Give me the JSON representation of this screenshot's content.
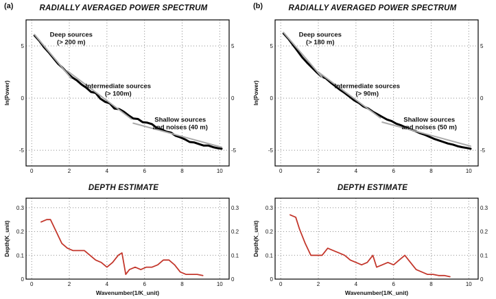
{
  "panels": {
    "a": {
      "tag": "(a)"
    },
    "b": {
      "tag": "(b)"
    }
  },
  "chart_data": [
    {
      "id": "a-power-spectrum",
      "type": "line",
      "title": "RADIALLY AVERAGED POWER SPECTRUM",
      "xlabel": "",
      "ylabel": "ln(Power)",
      "xlim": [
        -0.3,
        10.5
      ],
      "ylim": [
        -6.5,
        7.5
      ],
      "xticks": [
        0,
        2,
        4,
        6,
        8,
        10
      ],
      "yticks": [
        -5,
        0,
        5
      ],
      "grid": true,
      "series": [
        {
          "name": "power-spectrum",
          "color": "#000000",
          "width": 3,
          "x": [
            0.15,
            0.4,
            0.65,
            0.9,
            1.15,
            1.4,
            1.65,
            1.9,
            2.15,
            2.4,
            2.65,
            2.9,
            3.15,
            3.4,
            3.65,
            3.9,
            4.15,
            4.4,
            4.65,
            4.9,
            5.15,
            5.4,
            5.65,
            5.9,
            6.15,
            6.4,
            6.65,
            6.9,
            7.15,
            7.4,
            7.65,
            7.9,
            8.15,
            8.4,
            8.65,
            8.9,
            9.15,
            9.4,
            9.65,
            9.9,
            10.1
          ],
          "y": [
            6.0,
            5.5,
            4.9,
            4.4,
            3.85,
            3.3,
            2.9,
            2.4,
            2.0,
            1.7,
            1.3,
            1.0,
            0.6,
            0.5,
            -0.05,
            -0.35,
            -0.5,
            -1.0,
            -1.05,
            -1.3,
            -1.65,
            -1.95,
            -2.0,
            -2.3,
            -2.35,
            -2.5,
            -2.85,
            -3.0,
            -3.2,
            -3.3,
            -3.6,
            -3.75,
            -3.95,
            -4.2,
            -4.25,
            -4.4,
            -4.55,
            -4.55,
            -4.7,
            -4.8,
            -4.85
          ]
        },
        {
          "name": "deep-trend",
          "color": "#aaaaaa",
          "width": 2,
          "x": [
            0.15,
            2.1
          ],
          "y": [
            6.1,
            1.9
          ]
        },
        {
          "name": "intermediate-trend",
          "color": "#aaaaaa",
          "width": 2,
          "x": [
            1.9,
            5.3
          ],
          "y": [
            2.6,
            -2.0
          ]
        },
        {
          "name": "shallow-trend",
          "color": "#aaaaaa",
          "width": 2,
          "x": [
            5.4,
            10.1
          ],
          "y": [
            -2.4,
            -4.7
          ]
        }
      ],
      "annotations": [
        {
          "x": 2.1,
          "y": 5.9,
          "lines": [
            "Deep sources",
            "(> 200 m)"
          ]
        },
        {
          "x": 4.6,
          "y": 0.95,
          "lines": [
            "Intermediate sources",
            "(> 100m)"
          ]
        },
        {
          "x": 7.9,
          "y": -2.25,
          "lines": [
            "Shallow sources",
            "and noises (40 m)"
          ]
        }
      ]
    },
    {
      "id": "a-depth-estimate",
      "type": "line",
      "title": "DEPTH ESTIMATE",
      "xlabel": "Wavenumber(1/K_unit)",
      "ylabel": "Depth(K_unit)",
      "xlim": [
        -0.3,
        10.5
      ],
      "ylim": [
        0,
        0.34
      ],
      "xticks": [
        0,
        2,
        4,
        6,
        8,
        10
      ],
      "yticks": [
        0,
        0.1,
        0.2,
        0.3
      ],
      "grid": true,
      "series": [
        {
          "name": "depth-estimate",
          "color": "#c3362b",
          "width": 1.8,
          "x": [
            0.5,
            0.8,
            1.0,
            1.3,
            1.6,
            1.9,
            2.2,
            2.5,
            2.8,
            3.1,
            3.4,
            3.7,
            4.0,
            4.3,
            4.6,
            4.8,
            5.0,
            5.2,
            5.5,
            5.8,
            6.1,
            6.4,
            6.7,
            7.0,
            7.3,
            7.6,
            7.9,
            8.2,
            8.5,
            8.8,
            9.1
          ],
          "y": [
            0.24,
            0.25,
            0.25,
            0.2,
            0.15,
            0.13,
            0.12,
            0.12,
            0.12,
            0.1,
            0.08,
            0.07,
            0.05,
            0.07,
            0.1,
            0.11,
            0.02,
            0.04,
            0.05,
            0.04,
            0.05,
            0.05,
            0.06,
            0.08,
            0.08,
            0.06,
            0.03,
            0.02,
            0.02,
            0.02,
            0.015
          ]
        }
      ],
      "annotations": []
    },
    {
      "id": "b-power-spectrum",
      "type": "line",
      "title": "RADIALLY AVERAGED POWER SPECTRUM",
      "xlabel": "",
      "ylabel": "ln(Power)",
      "xlim": [
        -0.3,
        10.5
      ],
      "ylim": [
        -6.5,
        7.5
      ],
      "xticks": [
        0,
        2,
        4,
        6,
        8,
        10
      ],
      "yticks": [
        -5,
        0,
        5
      ],
      "grid": true,
      "series": [
        {
          "name": "power-spectrum",
          "color": "#000000",
          "width": 3,
          "x": [
            0.15,
            0.4,
            0.65,
            0.9,
            1.15,
            1.4,
            1.65,
            1.9,
            2.15,
            2.4,
            2.65,
            2.9,
            3.15,
            3.4,
            3.65,
            3.9,
            4.15,
            4.4,
            4.65,
            4.9,
            5.15,
            5.4,
            5.65,
            5.9,
            6.15,
            6.4,
            6.65,
            6.9,
            7.15,
            7.4,
            7.65,
            7.9,
            8.15,
            8.4,
            8.65,
            8.9,
            9.15,
            9.4,
            9.65,
            9.9,
            10.1
          ],
          "y": [
            6.2,
            5.7,
            5.1,
            4.5,
            3.9,
            3.4,
            2.95,
            2.5,
            2.1,
            1.9,
            1.5,
            1.15,
            0.8,
            0.5,
            0.15,
            -0.2,
            -0.45,
            -0.8,
            -1.0,
            -1.3,
            -1.55,
            -1.8,
            -2.05,
            -2.2,
            -2.45,
            -2.6,
            -2.8,
            -3.0,
            -3.15,
            -3.35,
            -3.5,
            -3.7,
            -3.9,
            -4.05,
            -4.2,
            -4.35,
            -4.45,
            -4.6,
            -4.7,
            -4.78,
            -4.85
          ]
        },
        {
          "name": "deep-trend",
          "color": "#aaaaaa",
          "width": 2,
          "x": [
            0.15,
            2.2
          ],
          "y": [
            6.3,
            2.0
          ]
        },
        {
          "name": "intermediate-trend",
          "color": "#aaaaaa",
          "width": 2,
          "x": [
            2.0,
            5.3
          ],
          "y": [
            2.5,
            -1.9
          ]
        },
        {
          "name": "shallow-trend",
          "color": "#aaaaaa",
          "width": 2,
          "x": [
            5.4,
            10.1
          ],
          "y": [
            -2.3,
            -4.6
          ]
        }
      ],
      "annotations": [
        {
          "x": 2.1,
          "y": 5.9,
          "lines": [
            "Deep sources",
            "(> 180 m)"
          ]
        },
        {
          "x": 4.6,
          "y": 0.95,
          "lines": [
            "Intermediate sources",
            "(> 90m)"
          ]
        },
        {
          "x": 7.9,
          "y": -2.25,
          "lines": [
            "Shallow sources",
            "and noises (50 m)"
          ]
        }
      ]
    },
    {
      "id": "b-depth-estimate",
      "type": "line",
      "title": "DEPTH ESTIMATE",
      "xlabel": "Wavenumber(1/K_unit)",
      "ylabel": "Depth(K_unit)",
      "xlim": [
        -0.3,
        10.5
      ],
      "ylim": [
        0,
        0.34
      ],
      "xticks": [
        0,
        2,
        4,
        6,
        8,
        10
      ],
      "yticks": [
        0,
        0.1,
        0.2,
        0.3
      ],
      "grid": true,
      "series": [
        {
          "name": "depth-estimate",
          "color": "#c3362b",
          "width": 1.8,
          "x": [
            0.5,
            0.8,
            1.0,
            1.3,
            1.6,
            1.9,
            2.2,
            2.5,
            2.8,
            3.1,
            3.4,
            3.7,
            4.0,
            4.3,
            4.6,
            4.9,
            5.1,
            5.4,
            5.7,
            6.0,
            6.3,
            6.6,
            6.9,
            7.2,
            7.5,
            7.8,
            8.1,
            8.4,
            8.7,
            9.0
          ],
          "y": [
            0.27,
            0.26,
            0.21,
            0.15,
            0.1,
            0.1,
            0.1,
            0.13,
            0.12,
            0.11,
            0.1,
            0.08,
            0.07,
            0.06,
            0.07,
            0.1,
            0.05,
            0.06,
            0.07,
            0.06,
            0.08,
            0.1,
            0.07,
            0.04,
            0.03,
            0.02,
            0.02,
            0.015,
            0.015,
            0.01
          ]
        }
      ],
      "annotations": []
    }
  ]
}
